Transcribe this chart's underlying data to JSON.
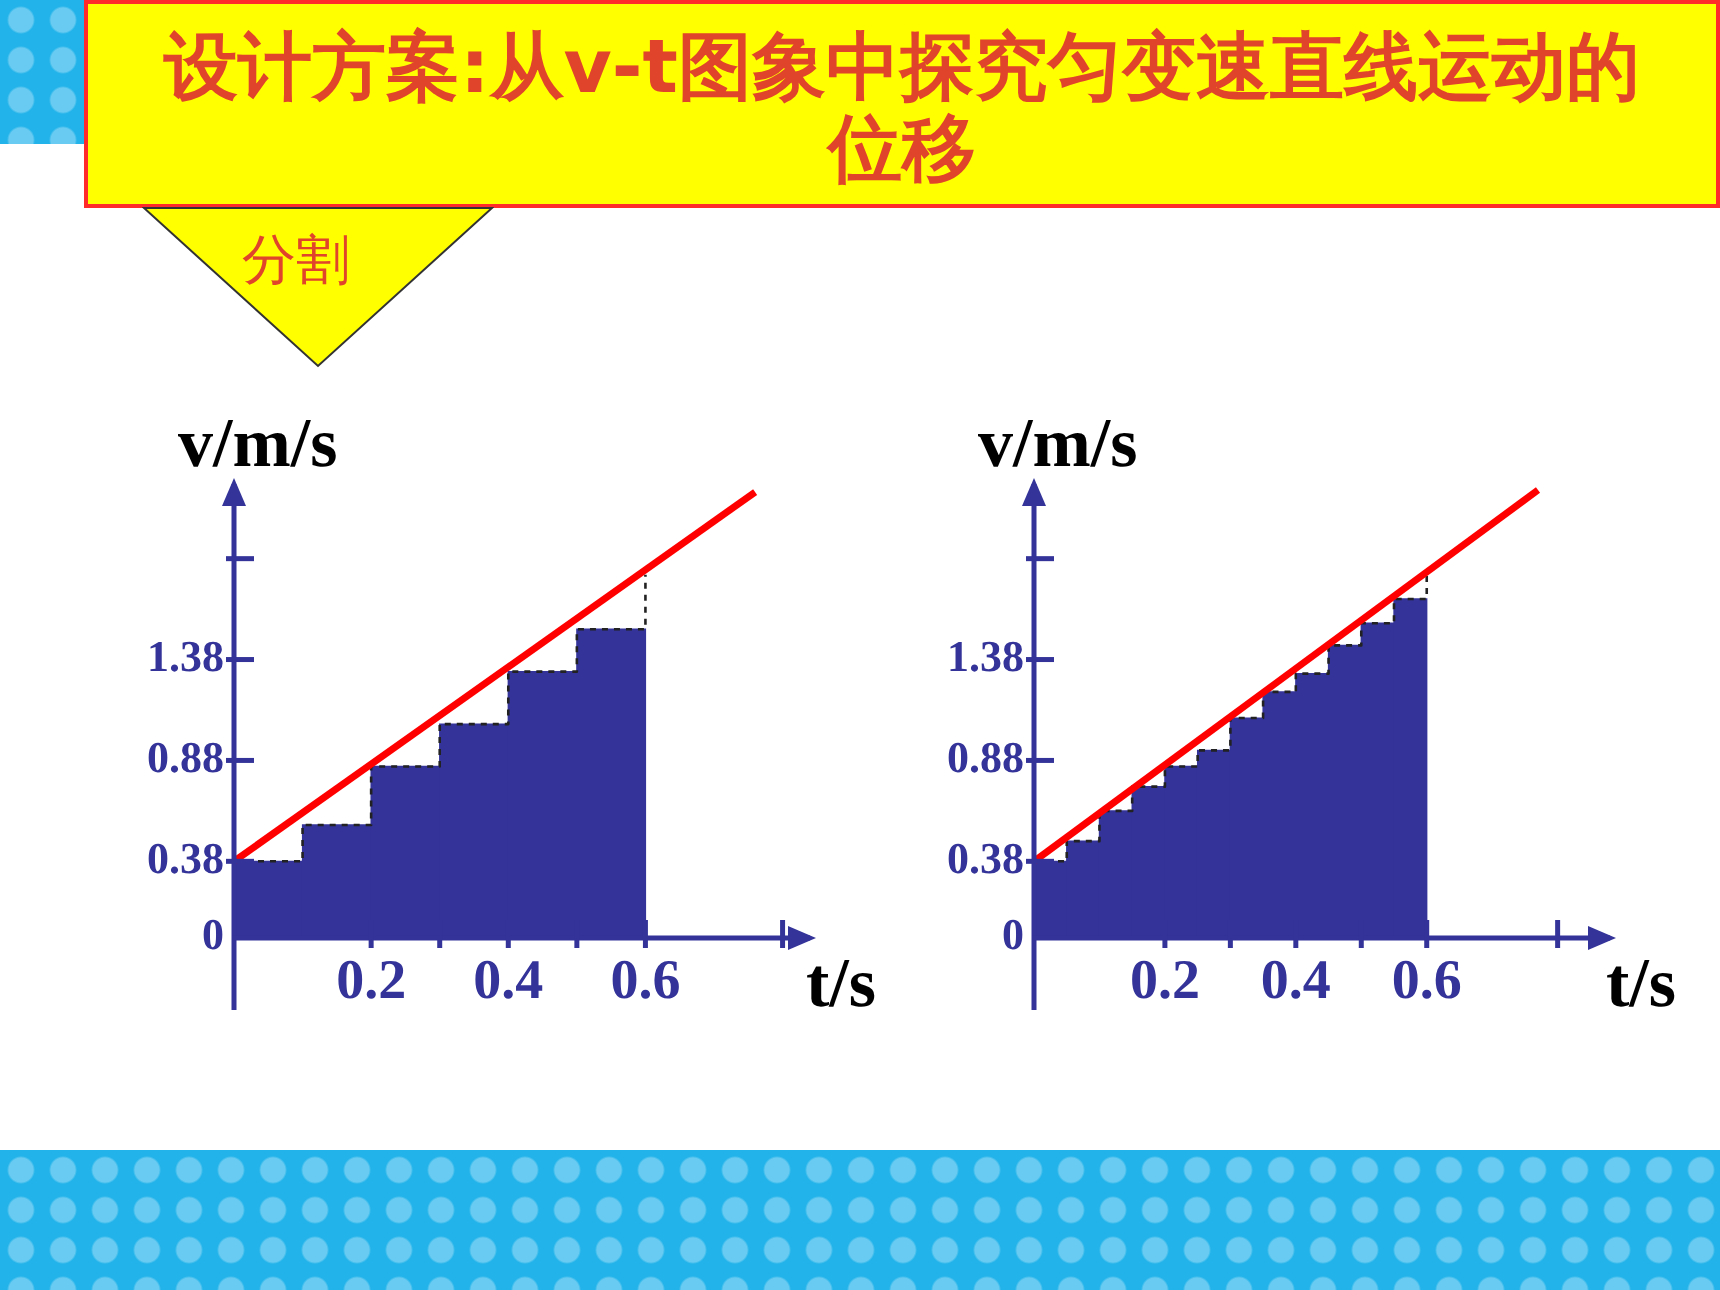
{
  "chart_data": [
    {
      "type": "histogram",
      "title": "设计方案:从v-t图象中探究匀变速直线运动的位移",
      "annotations": [
        "分割"
      ],
      "xlabel": "t/s",
      "ylabel": "v/m/s",
      "bins": [
        0,
        0.1,
        0.2,
        0.3,
        0.4,
        0.5,
        0.6
      ],
      "series": [
        {
          "color": "#333399",
          "values": [
            0.38,
            0.56,
            0.85,
            1.06,
            1.32,
            1.53
          ]
        },
        {
          "type": "step",
          "color": "#222222",
          "line_style": "dashed",
          "x": [
            0,
            0.1,
            0.2,
            0.3,
            0.4,
            0.5,
            0.6
          ],
          "values": [
            0.38,
            0.56,
            0.85,
            1.06,
            1.32,
            1.53,
            1.8
          ]
        },
        {
          "type": "line",
          "color": "#ff0000",
          "x": [
            0,
            0.76
          ],
          "values": [
            0.38,
            2.21
          ]
        }
      ],
      "xlim": [
        0,
        0.84
      ],
      "ylim": [
        0,
        2.25
      ],
      "xticks": [
        0.2,
        {
          "value": 0.3,
          "label": null
        },
        0.4,
        {
          "value": 0.5,
          "label": null
        },
        0.6,
        {
          "value": 0.8,
          "label": null
        }
      ],
      "yticks": [
        0,
        0.38,
        0.88,
        1.38,
        {
          "value": 1.88,
          "label": null
        }
      ],
      "marker": "none"
    },
    {
      "type": "histogram",
      "xlabel": "t/s",
      "ylabel": "v/m/s",
      "bins": [
        0,
        0.05,
        0.1,
        0.15,
        0.2,
        0.25,
        0.3,
        0.35,
        0.4,
        0.45,
        0.5,
        0.55,
        0.6
      ],
      "series": [
        {
          "color": "#333399",
          "values": [
            0.38,
            0.48,
            0.63,
            0.75,
            0.85,
            0.93,
            1.09,
            1.22,
            1.31,
            1.45,
            1.56,
            1.68
          ]
        },
        {
          "type": "step",
          "color": "#222222",
          "line_style": "dashed",
          "x": [
            0,
            0.05,
            0.1,
            0.15,
            0.2,
            0.25,
            0.3,
            0.35,
            0.4,
            0.45,
            0.5,
            0.55,
            0.6
          ],
          "values": [
            0.38,
            0.48,
            0.63,
            0.75,
            0.85,
            0.93,
            1.09,
            1.22,
            1.31,
            1.45,
            1.56,
            1.68,
            1.8
          ]
        },
        {
          "type": "line",
          "color": "#ff0000",
          "x": [
            0,
            0.77
          ],
          "values": [
            0.38,
            2.22
          ]
        }
      ],
      "xlim": [
        0,
        0.88
      ],
      "ylim": [
        0,
        2.25
      ],
      "xticks": [
        0.2,
        {
          "value": 0.3,
          "label": null
        },
        0.4,
        {
          "value": 0.5,
          "label": null
        },
        0.6,
        {
          "value": 0.8,
          "label": null
        }
      ],
      "yticks": [
        0,
        0.38,
        0.88,
        1.38,
        {
          "value": 1.88,
          "label": null
        }
      ],
      "marker": "none"
    }
  ]
}
